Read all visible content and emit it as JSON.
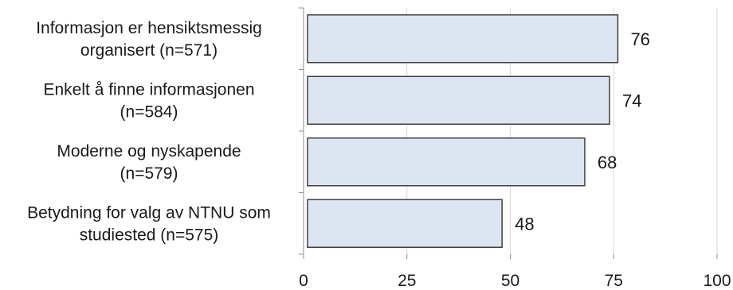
{
  "chart_data": {
    "type": "bar",
    "orientation": "horizontal",
    "categories": [
      [
        "Informasjon er hensiktsmessig",
        "organisert (n=571)"
      ],
      [
        "Enkelt å finne informasjonen",
        "(n=584)"
      ],
      [
        "Moderne og nyskapende",
        "(n=579)"
      ],
      [
        "Betydning for valg av NTNU som",
        "studiested (n=575)"
      ]
    ],
    "values": [
      76,
      74,
      68,
      48
    ],
    "xlim": [
      0,
      100
    ],
    "ticks": [
      0,
      25,
      50,
      75,
      100
    ],
    "tick_labels": [
      "0",
      "25",
      "50",
      "75",
      "100"
    ],
    "data_labels": [
      "76",
      "74",
      "68",
      "48"
    ],
    "grid": true,
    "legend": "none",
    "bar_color": "#dce6f2",
    "bar_border_color": "#3f3f3f",
    "grid_color": "#d9d9d9"
  }
}
